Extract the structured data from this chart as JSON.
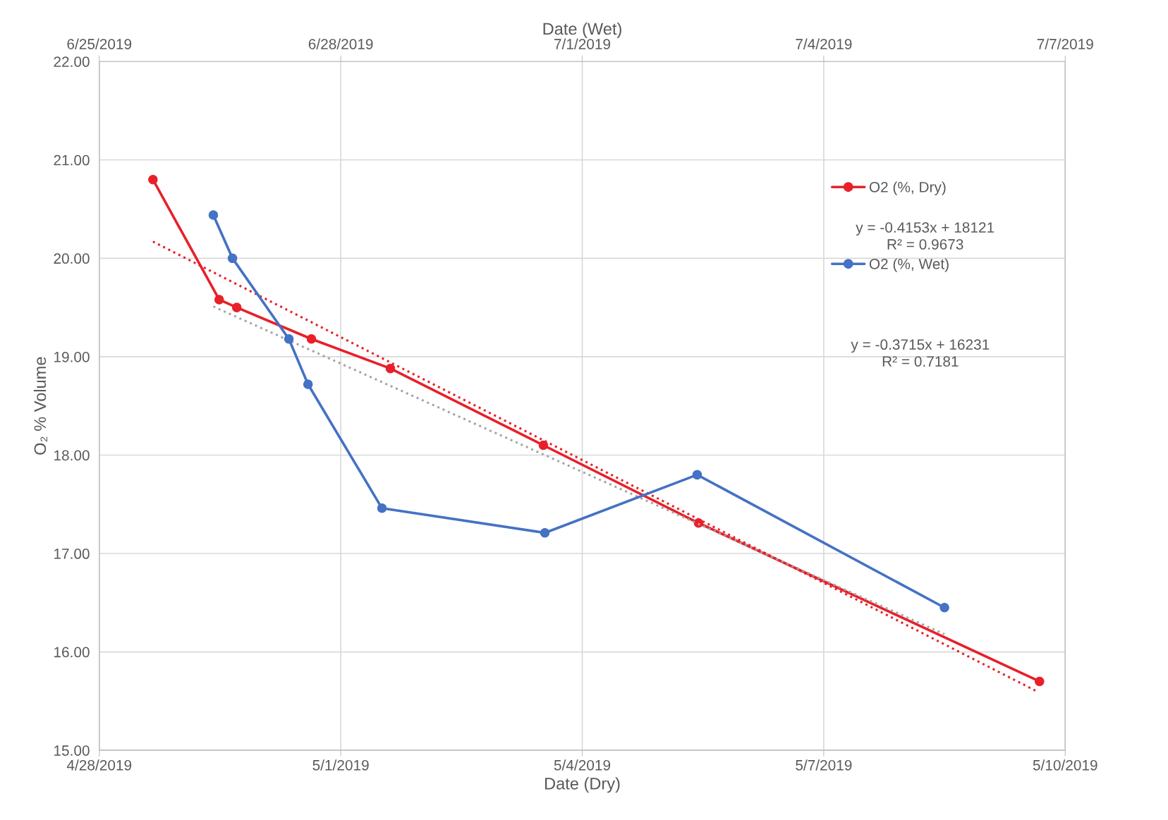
{
  "chart_data": {
    "type": "line",
    "xlabel": "Date (Dry)",
    "x2label": "Date (Wet)",
    "ylabel": "O₂ % Volume",
    "xlim": [
      "2019-04-28",
      "2019-05-10"
    ],
    "xticks": [
      {
        "value": "2019-04-28",
        "label": "4/28/2019"
      },
      {
        "value": "2019-05-01",
        "label": "5/1/2019"
      },
      {
        "value": "2019-05-04",
        "label": "5/4/2019"
      },
      {
        "value": "2019-05-07",
        "label": "5/7/2019"
      },
      {
        "value": "2019-05-10",
        "label": "5/10/2019"
      }
    ],
    "x2lim": [
      "2019-06-25",
      "2019-07-07"
    ],
    "x2ticks": [
      {
        "value": "2019-06-25",
        "label": "6/25/2019"
      },
      {
        "value": "2019-06-28",
        "label": "6/28/2019"
      },
      {
        "value": "2019-07-01",
        "label": "7/1/2019"
      },
      {
        "value": "2019-07-04",
        "label": "7/4/2019"
      },
      {
        "value": "2019-07-07",
        "label": "7/7/2019"
      }
    ],
    "ylim": [
      15,
      22
    ],
    "yticks": [
      {
        "value": 15,
        "label": "15.00"
      },
      {
        "value": 16,
        "label": "16.00"
      },
      {
        "value": 17,
        "label": "17.00"
      },
      {
        "value": 18,
        "label": "18.00"
      },
      {
        "value": 19,
        "label": "19.00"
      },
      {
        "value": 20,
        "label": "20.00"
      },
      {
        "value": 21,
        "label": "21.00"
      },
      {
        "value": 22,
        "label": "22.00"
      }
    ],
    "grid": true,
    "legend": "right",
    "marker": "circle",
    "line_style": "solid",
    "series": [
      {
        "name": "O2 (%, Dry)",
        "color": "#e8202a",
        "x": [
          "2019-04-28T16:00",
          "2019-04-29T11:45",
          "2019-04-29T17:00",
          "2019-04-30T15:15",
          "2019-05-01T14:48",
          "2019-05-03T12:25",
          "2019-05-05T10:40",
          "2019-05-09T16:20"
        ],
        "values": [
          20.8,
          19.58,
          19.5,
          19.18,
          18.88,
          18.1,
          17.31,
          15.7
        ]
      },
      {
        "name": "O2 (%, Wet)",
        "color": "#4472c4",
        "axis": "x2",
        "x": [
          "2019-06-26T10:00",
          "2019-06-26T15:43",
          "2019-06-27T08:32",
          "2019-06-27T14:14",
          "2019-06-28T12:17",
          "2019-06-30T12:51",
          "2019-07-02T10:16",
          "2019-07-05T12:00"
        ],
        "values": [
          20.44,
          20.0,
          19.18,
          18.72,
          17.46,
          17.21,
          17.8,
          16.45
        ]
      },
      {
        "type": "line",
        "color": "#e8202a",
        "line_style": "dotted",
        "marker": "none",
        "x": [
          "2019-04-28T16:00",
          "2019-05-09T15:30"
        ],
        "values": [
          20.17,
          15.6
        ]
      },
      {
        "type": "line",
        "color": "#a5a5a5",
        "line_style": "dotted",
        "marker": "none",
        "axis": "x2",
        "x": [
          "2019-06-26T10:00",
          "2019-07-05T12:00"
        ],
        "values": [
          19.51,
          16.18
        ]
      }
    ],
    "annotations": [
      "y = -0.4153x + 18121\nR² = 0.9673",
      "y = -0.3715x + 16231\nR² = 0.7181"
    ]
  }
}
